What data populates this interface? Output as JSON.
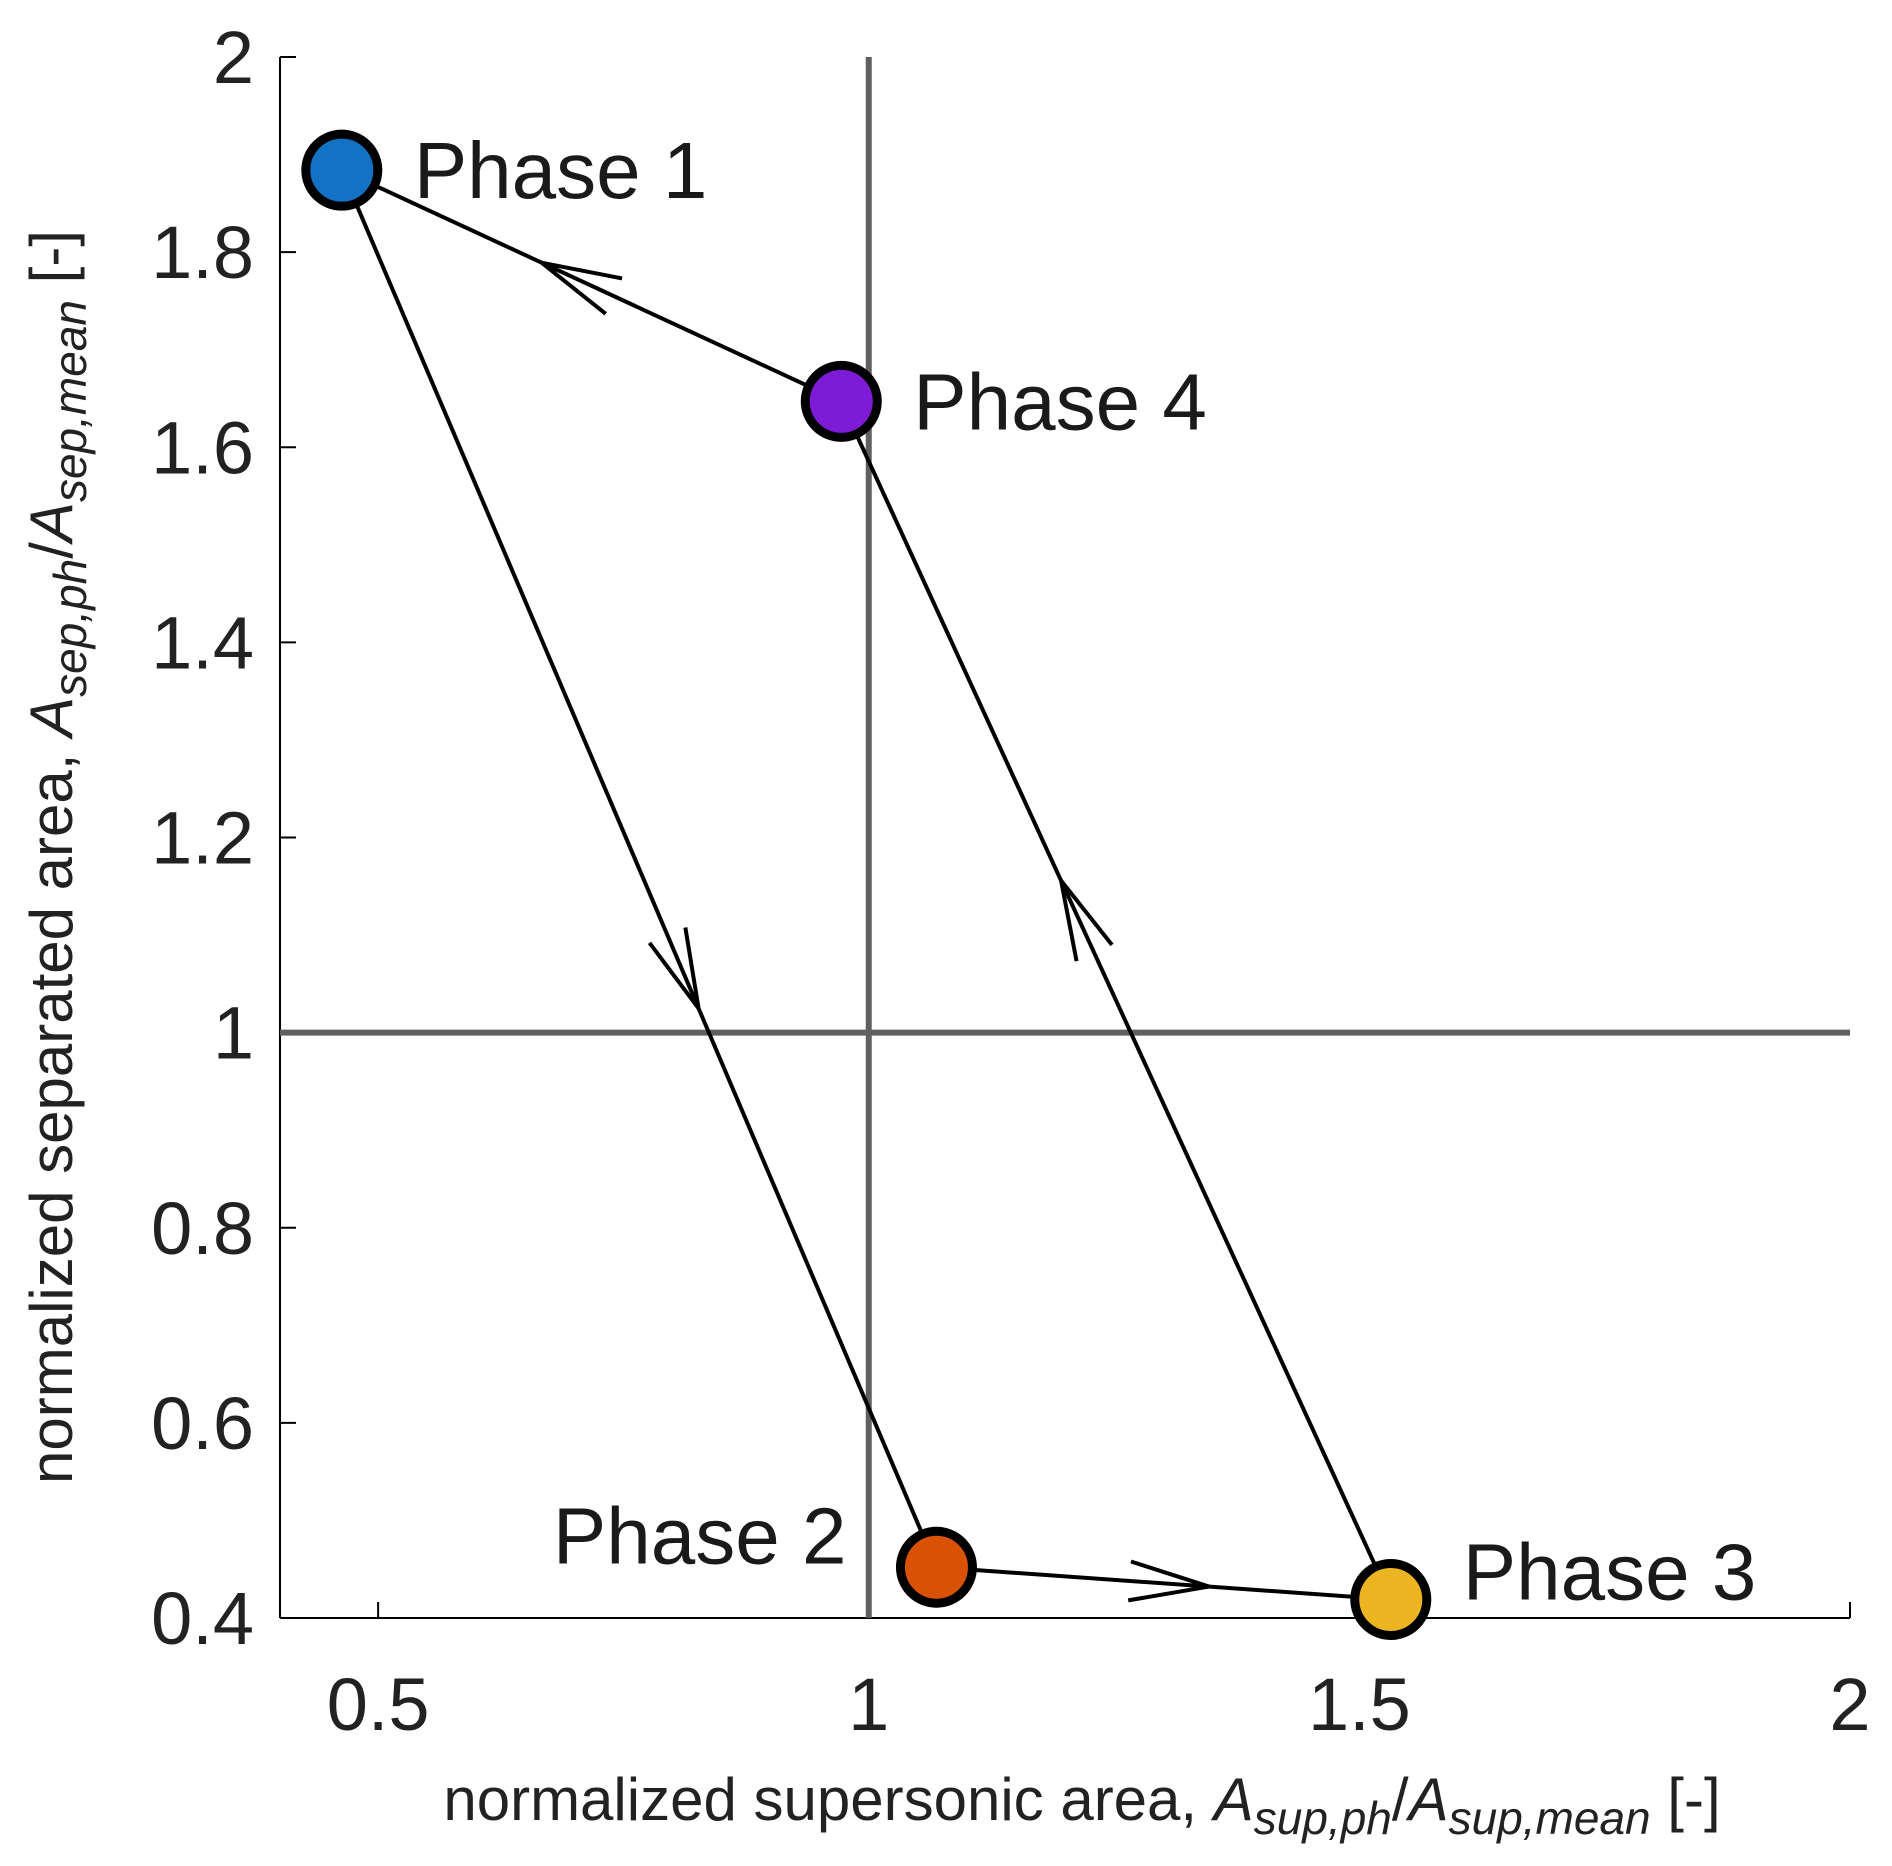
{
  "chart_data": {
    "type": "line",
    "xlabel": {
      "prefix": "normalized  supersonic  area, ",
      "num": "A",
      "num_sub": "sup,ph",
      "slash": "/",
      "den": "A",
      "den_sub": "sup,mean",
      "unit": "  [-]"
    },
    "ylabel": {
      "prefix": "normalized  separated  area, ",
      "num": "A",
      "num_sub": "sep,ph",
      "slash": "/",
      "den": "A",
      "den_sub": "sep,mean",
      "unit": "  [-]"
    },
    "xlim": [
      0.4,
      2.0
    ],
    "ylim": [
      0.4,
      2.0
    ],
    "xticks": [
      0.5,
      1.0,
      1.5,
      2.0
    ],
    "xtick_labels": [
      "0.5",
      "1",
      "1.5",
      "2"
    ],
    "yticks": [
      0.4,
      0.6,
      0.8,
      1.0,
      1.2,
      1.4,
      1.6,
      1.8,
      2.0
    ],
    "ytick_labels": [
      "0.4",
      "0.6",
      "0.8",
      "1",
      "1.2",
      "1.4",
      "1.6",
      "1.8",
      "2"
    ],
    "reference_lines": {
      "x": 1.0,
      "y": 1.0,
      "color": "#606060"
    },
    "line_color": "#000000",
    "points": [
      {
        "label": "Phase 1",
        "x": 0.463,
        "y": 1.884,
        "color": "#1372c4"
      },
      {
        "label": "Phase 2",
        "x": 1.069,
        "y": 0.452,
        "color": "#d95203"
      },
      {
        "label": "Phase 3",
        "x": 1.532,
        "y": 0.419,
        "color": "#ecb421"
      },
      {
        "label": "Phase 4",
        "x": 0.972,
        "y": 1.647,
        "color": "#7d1bd6"
      }
    ],
    "cycle_order": [
      "Phase 1",
      "Phase 2",
      "Phase 3",
      "Phase 4",
      "Phase 1"
    ]
  }
}
